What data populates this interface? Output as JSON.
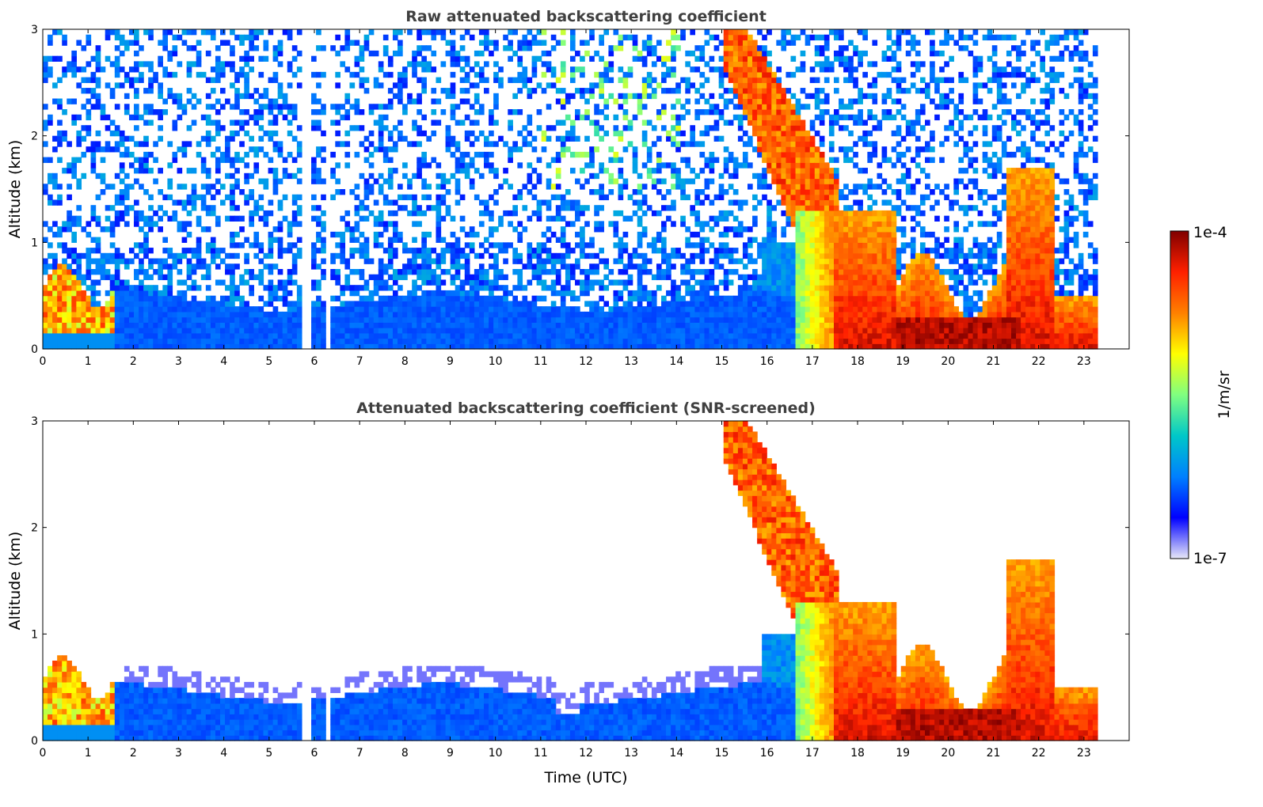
{
  "chart_data": [
    {
      "type": "heatmap",
      "id": "raw",
      "title": "Raw attenuated backscattering coefficient",
      "xlabel": "",
      "ylabel": "Altitude (km)",
      "xlim": [
        0,
        24
      ],
      "ylim": [
        0,
        3
      ],
      "xticks": [
        "0",
        "1",
        "2",
        "3",
        "4",
        "5",
        "6",
        "7",
        "8",
        "9",
        "10",
        "11",
        "12",
        "13",
        "14",
        "15",
        "16",
        "17",
        "18",
        "19",
        "20",
        "21",
        "22",
        "23"
      ],
      "yticks": [
        "0",
        "1",
        "2",
        "3"
      ],
      "data_gaps_utc": [
        [
          5.7,
          5.85
        ],
        [
          6.2,
          6.28
        ],
        [
          23.3,
          24
        ]
      ],
      "features": [
        {
          "name": "boundary-layer",
          "x_range": [
            1.5,
            16.6
          ],
          "top_km": 0.5
        },
        {
          "name": "early-cloud",
          "x_range": [
            0,
            1.5
          ],
          "top_km": 0.7
        },
        {
          "name": "descending-cloud",
          "x_range": [
            15,
            19
          ],
          "from_km": 3.0,
          "to_km": 0.0
        },
        {
          "name": "precipitation",
          "x_range": [
            16.6,
            23.3
          ],
          "top_km": 1.6
        }
      ]
    },
    {
      "type": "heatmap",
      "id": "snr",
      "title": "Attenuated backscattering coefficient (SNR-screened)",
      "xlabel": "Time (UTC)",
      "ylabel": "Altitude (km)",
      "xlim": [
        0,
        24
      ],
      "ylim": [
        0,
        3
      ],
      "xticks": [
        "0",
        "1",
        "2",
        "3",
        "4",
        "5",
        "6",
        "7",
        "8",
        "9",
        "10",
        "11",
        "12",
        "13",
        "14",
        "15",
        "16",
        "17",
        "18",
        "19",
        "20",
        "21",
        "22",
        "23"
      ],
      "yticks": [
        "0",
        "1",
        "2",
        "3"
      ],
      "data_gaps_utc": [
        [
          5.7,
          5.85
        ],
        [
          6.2,
          6.28
        ],
        [
          23.3,
          24
        ]
      ],
      "features": [
        {
          "name": "boundary-layer",
          "x_range": [
            1.5,
            16.6
          ],
          "top_km": 0.6
        },
        {
          "name": "descending-cloud",
          "x_range": [
            15,
            19
          ],
          "from_km": 3.0,
          "to_km": 0.0
        },
        {
          "name": "precipitation",
          "x_range": [
            16.6,
            23.3
          ],
          "top_km": 1.6
        }
      ]
    }
  ],
  "colorbar": {
    "label": "1/m/sr",
    "max_label": "1e-4",
    "min_label": "1e-7",
    "colors": [
      "#e8e8f8",
      "#0000ff",
      "#0080ff",
      "#00c8c8",
      "#80ff80",
      "#ffff00",
      "#ff8000",
      "#ff2000",
      "#800000"
    ]
  }
}
